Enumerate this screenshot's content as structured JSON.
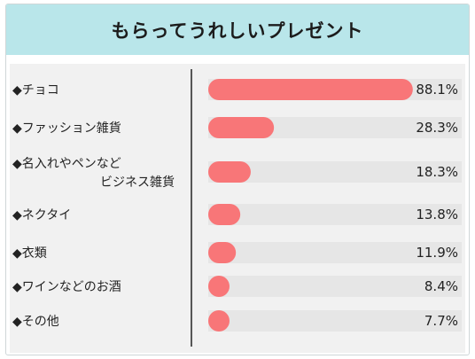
{
  "title": "もらってうれしいプレゼント",
  "chart_data": {
    "type": "bar",
    "orientation": "horizontal",
    "title": "もらってうれしいプレゼント",
    "categories": [
      [
        "◆チョコ"
      ],
      [
        "◆ファッション雑貨"
      ],
      [
        "◆名入れやペンなど",
        "ビジネス雑貨"
      ],
      [
        "◆ネクタイ"
      ],
      [
        "◆衣類"
      ],
      [
        "◆ワインなどのお酒"
      ],
      [
        "◆その他"
      ]
    ],
    "values": [
      88.1,
      28.3,
      18.3,
      13.8,
      11.9,
      8.4,
      7.7
    ],
    "value_labels": [
      "88.1%",
      "28.3%",
      "18.3%",
      "13.8%",
      "11.9%",
      "8.4%",
      "7.7%"
    ],
    "unit": "%",
    "xlim": [
      0,
      100
    ],
    "grid": false,
    "colors": {
      "bar": "#f87678",
      "track": "#e6e6e6",
      "panel": "#f1f1f1",
      "header": "#b9e6ea",
      "divider": "#222222"
    }
  }
}
